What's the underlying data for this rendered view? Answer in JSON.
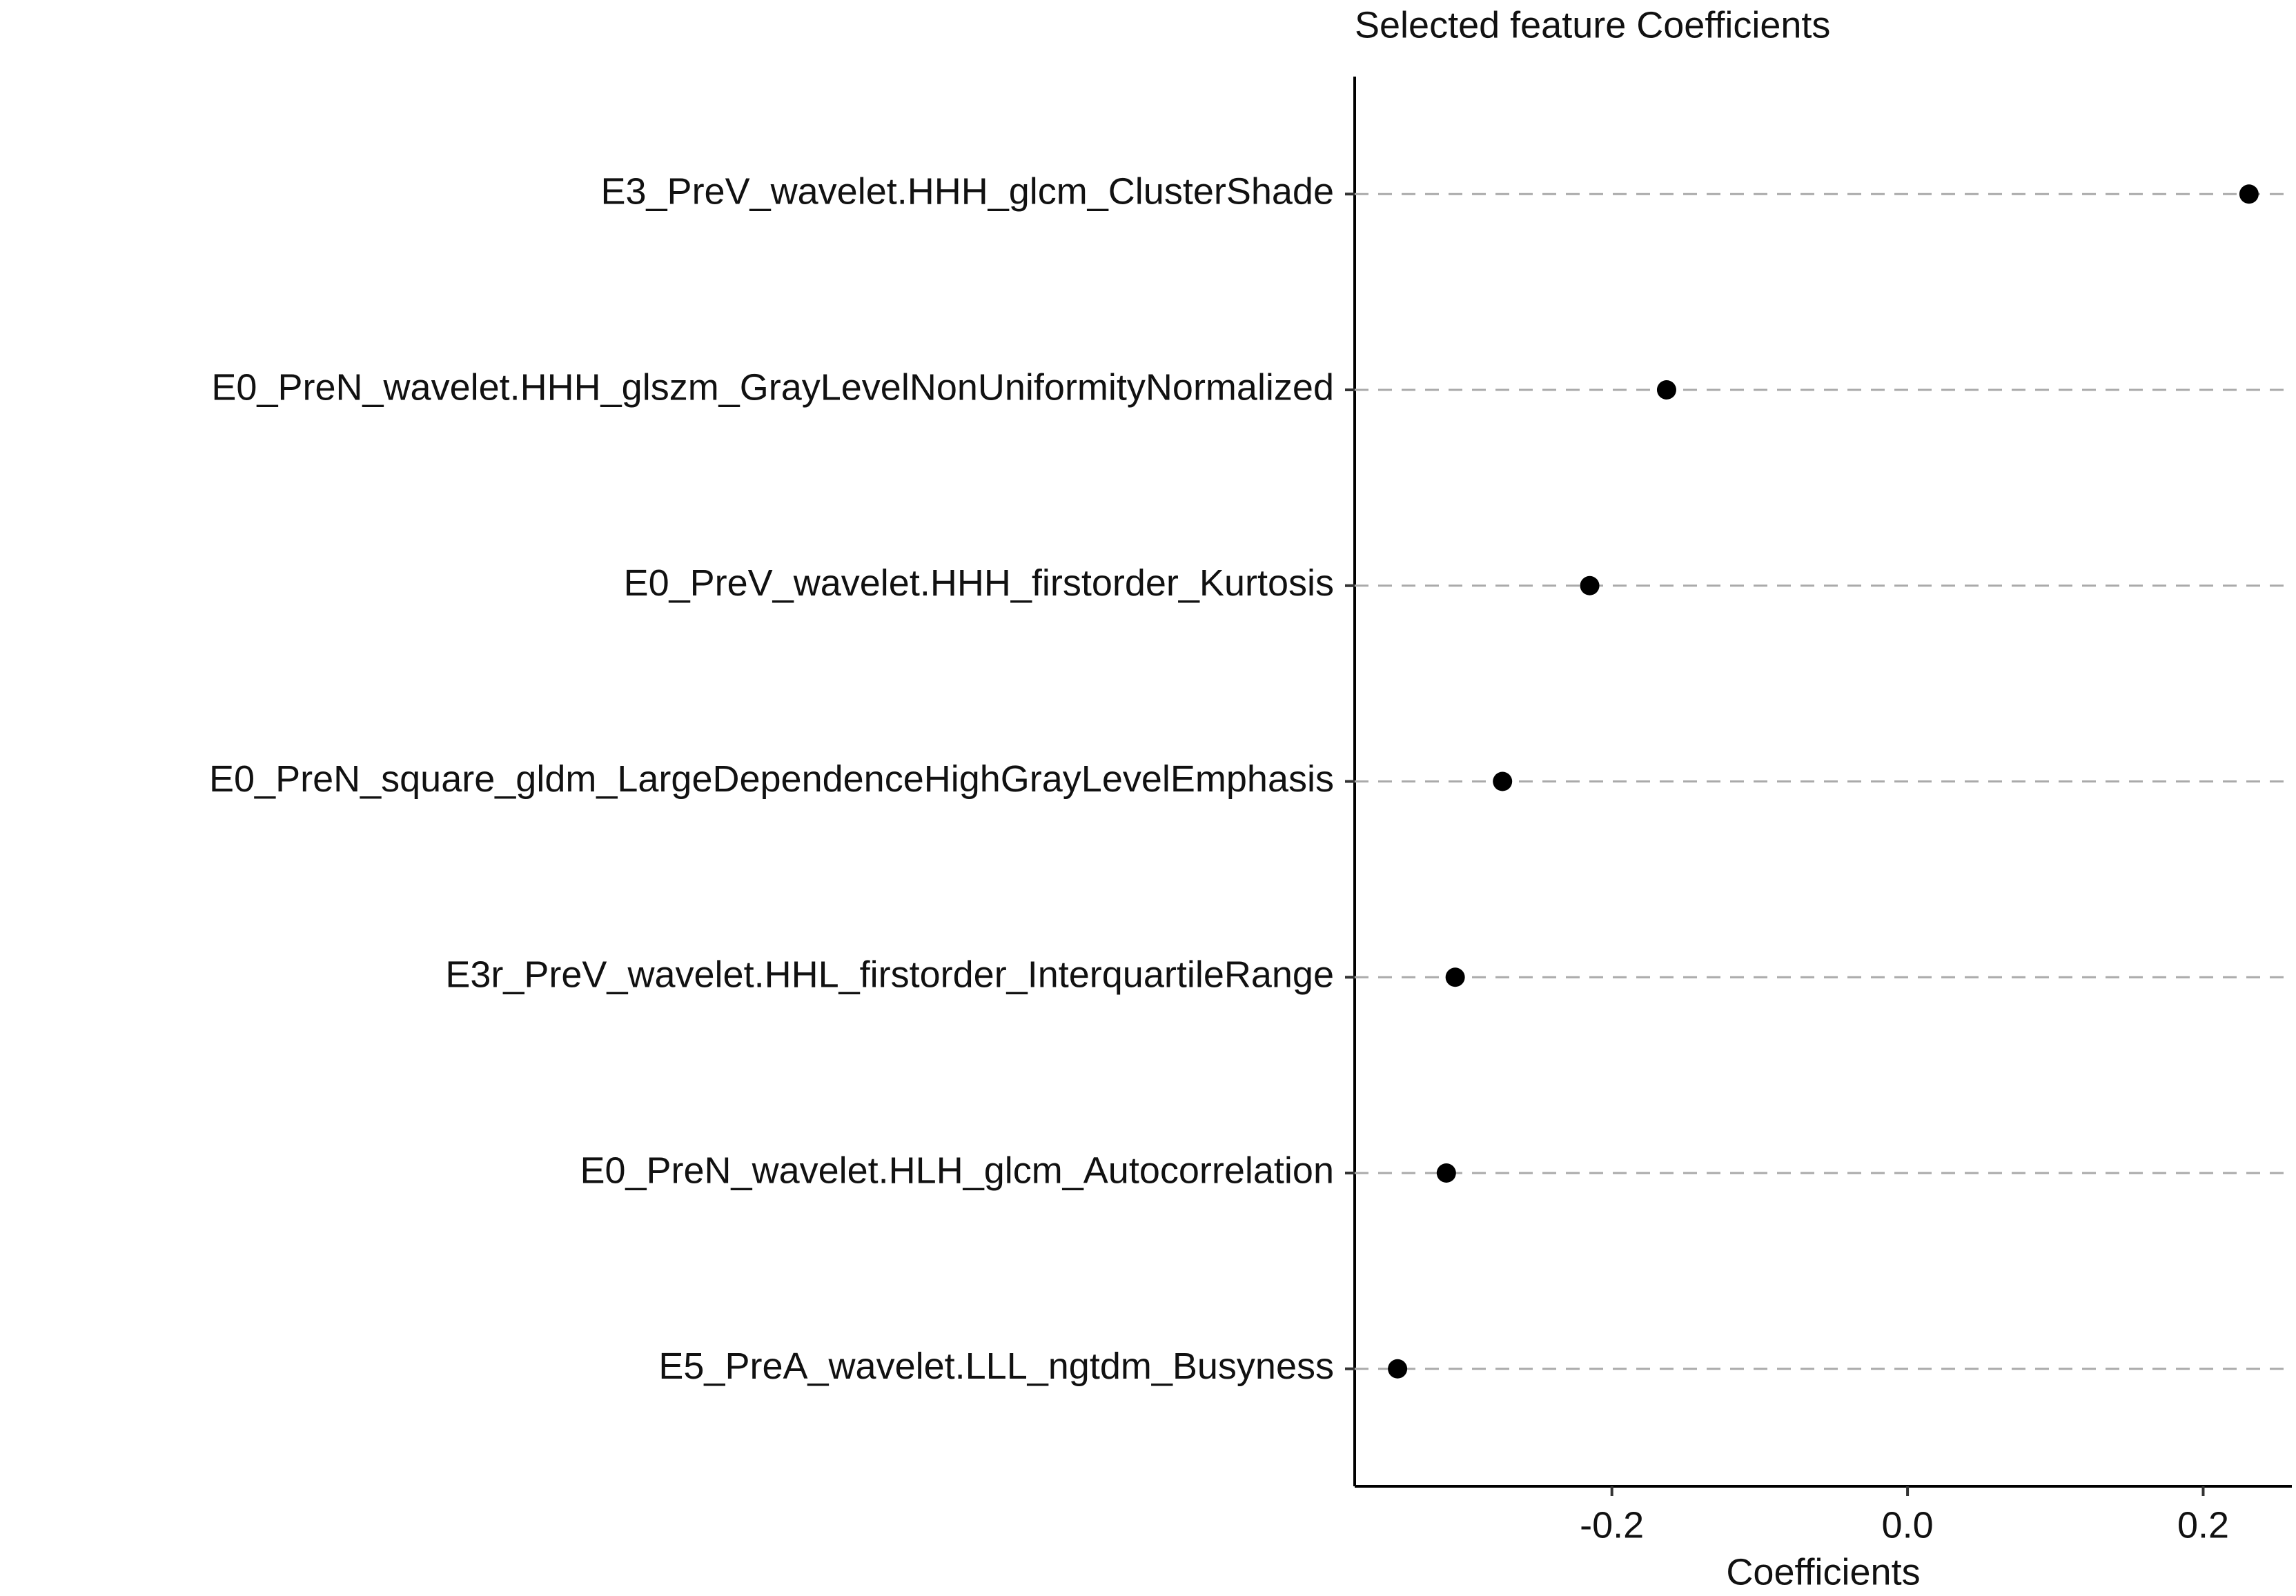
{
  "chart_data": {
    "type": "dot",
    "title": "Selected feature Coefficients",
    "x_label": "Coefficients",
    "categories": [
      "E3_PreV_wavelet.HHH_glcm_ClusterShade",
      "E0_PreN_wavelet.HHH_glszm_GrayLevelNonUniformityNormalized",
      "E0_PreV_wavelet.HHH_firstorder_Kurtosis",
      "E0_PreN_square_gldm_LargeDependenceHighGrayLevelEmphasis",
      "E3r_PreV_wavelet.HHL_firstorder_InterquartileRange",
      "E0_PreN_wavelet.HLH_glcm_Autocorrelation",
      "E5_PreA_wavelet.LLL_ngtdm_Busyness"
    ],
    "values": [
      0.231,
      -0.163,
      -0.215,
      -0.274,
      -0.306,
      -0.312,
      -0.345
    ],
    "color": "#000000",
    "xlim": [
      -0.374,
      0.26
    ],
    "xticks": [
      {
        "value": -0.2,
        "label": "-0.2"
      },
      {
        "value": 0.0,
        "label": "0.0"
      },
      {
        "value": 0.2,
        "label": "0.2"
      }
    ],
    "grid": true
  }
}
